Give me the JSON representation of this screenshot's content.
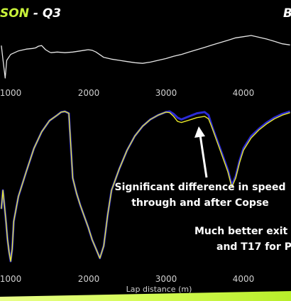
{
  "header": {
    "title_highlight": "SON",
    "title_rest": " - Q3",
    "title_right": "B"
  },
  "colors": {
    "background": "#000000",
    "brand_lime": "#c8f23a",
    "line_primary": "#e8e82a",
    "line_secondary": "#2b2bd6",
    "top_line": "#e6e6e6",
    "text": "#ffffff"
  },
  "chart_data": [
    {
      "type": "line",
      "panel": "top",
      "title": "",
      "x_ticks": [
        "1000",
        "2000",
        "3000",
        "4000"
      ],
      "xlim": [
        880,
        4600
      ],
      "grid": false,
      "x": [
        880,
        900,
        930,
        950,
        1000,
        1100,
        1200,
        1280,
        1320,
        1360,
        1400,
        1450,
        1500,
        1520,
        1600,
        1700,
        1800,
        1900,
        1950,
        2000,
        2050,
        2100,
        2200,
        2300,
        2400,
        2500,
        2600,
        2700,
        2800,
        2900,
        3000,
        3100,
        3200,
        3300,
        3400,
        3500,
        3600,
        3700,
        3800,
        3900,
        4000,
        4100,
        4200,
        4300,
        4400,
        4500,
        4600
      ],
      "series": [
        {
          "values": [
            95,
            72,
            40,
            70,
            80,
            86,
            89,
            90,
            91,
            94,
            95,
            88,
            84,
            83,
            84,
            83,
            84,
            86,
            87,
            88,
            87,
            84,
            75,
            72,
            70,
            68,
            66,
            65,
            67,
            70,
            73,
            77,
            80,
            84,
            88,
            92,
            96,
            100,
            104,
            108,
            110,
            112,
            109,
            106,
            102,
            98,
            96
          ]
        }
      ]
    },
    {
      "type": "line",
      "panel": "bottom",
      "title": "",
      "xlabel": "Lap distance (m)",
      "x_ticks": [
        "1000",
        "2000",
        "3000",
        "4000"
      ],
      "xlim": [
        880,
        4600
      ],
      "grid": false,
      "x": [
        880,
        900,
        920,
        940,
        960,
        980,
        1000,
        1020,
        1040,
        1100,
        1200,
        1300,
        1400,
        1500,
        1600,
        1650,
        1700,
        1750,
        1800,
        1850,
        1900,
        2000,
        2050,
        2100,
        2150,
        2200,
        2250,
        2300,
        2400,
        2500,
        2600,
        2700,
        2800,
        2900,
        3000,
        3050,
        3100,
        3150,
        3200,
        3300,
        3400,
        3500,
        3550,
        3600,
        3700,
        3800,
        3850,
        3900,
        3950,
        4000,
        4100,
        4200,
        4300,
        4400,
        4500,
        4600
      ],
      "series": [
        {
          "values": [
            140,
            170,
            145,
            120,
            90,
            70,
            55,
            75,
            120,
            160,
            200,
            238,
            265,
            283,
            292,
            297,
            298,
            295,
            190,
            165,
            145,
            110,
            90,
            75,
            60,
            80,
            130,
            170,
            205,
            235,
            258,
            274,
            285,
            292,
            297,
            296,
            290,
            282,
            280,
            284,
            288,
            290,
            286,
            270,
            235,
            200,
            175,
            190,
            215,
            235,
            255,
            268,
            278,
            286,
            292,
            296
          ]
        },
        {
          "values": [
            140,
            170,
            145,
            120,
            90,
            70,
            55,
            75,
            120,
            160,
            200,
            238,
            265,
            283,
            292,
            297,
            298,
            295,
            190,
            165,
            145,
            110,
            90,
            75,
            60,
            80,
            130,
            170,
            205,
            235,
            258,
            274,
            285,
            292,
            297,
            298,
            294,
            288,
            285,
            290,
            295,
            297,
            292,
            272,
            238,
            203,
            178,
            193,
            218,
            238,
            258,
            270,
            280,
            288,
            294,
            298
          ]
        }
      ]
    }
  ],
  "annotations": {
    "copse_line1": "Significant difference in speed",
    "copse_line2": "through and after Copse",
    "exit_line1": "Much better exit f",
    "exit_line2": "and T17 for Pi"
  }
}
